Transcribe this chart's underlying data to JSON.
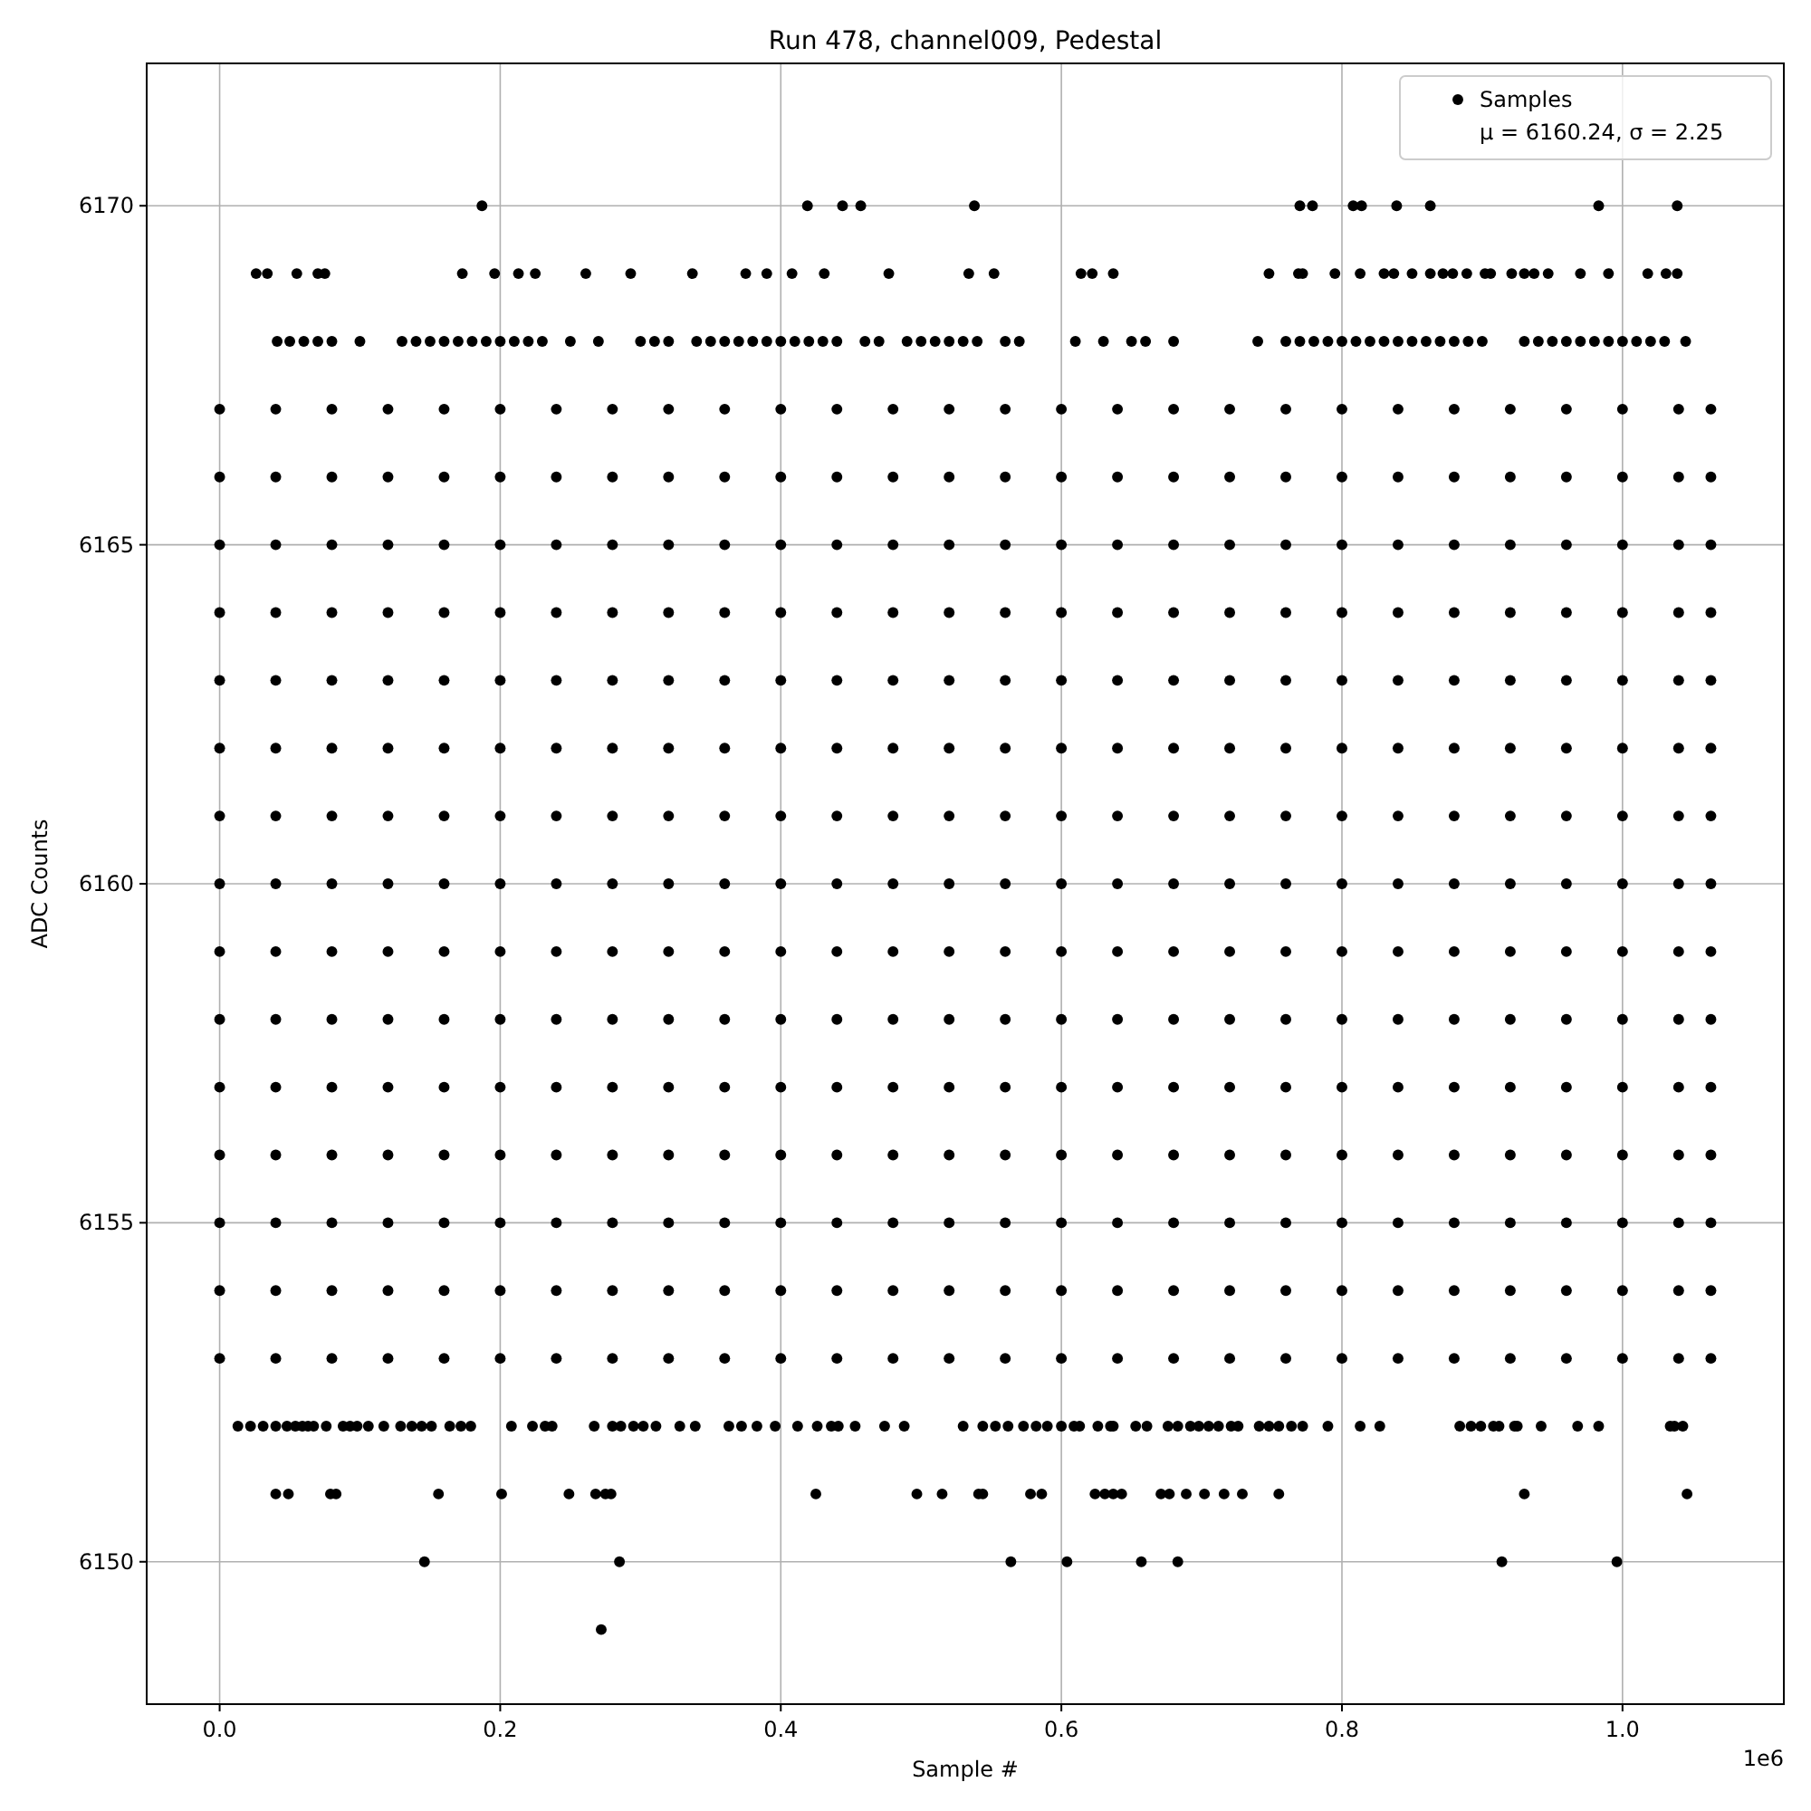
{
  "chart_data": {
    "type": "scatter",
    "title": "Run 478, channel009, Pedestal",
    "xlabel": "Sample #",
    "ylabel": "ADC Counts",
    "annotations": [
      "μ = 6160.24, σ = 2.25",
      "1e6"
    ],
    "xlim": [
      -0.052,
      1.115
    ],
    "xticks": [
      {
        "value": 0,
        "label": "0.0"
      },
      {
        "value": 0.2,
        "label": "0.2"
      },
      {
        "value": 0.4,
        "label": "0.4"
      },
      {
        "value": 0.6,
        "label": "0.6"
      },
      {
        "value": 0.8,
        "label": "0.8"
      },
      {
        "value": 1,
        "label": "1.0"
      }
    ],
    "ylim": [
      6147.9,
      6172.1
    ],
    "yticks": [
      6150,
      6155,
      6160,
      6165,
      6170
    ],
    "grid": true,
    "legend": "top right",
    "marker": "circle",
    "series": [
      {
        "name": "Samples",
        "color": "#000000",
        "x": [
          0.272,
          0.146,
          0.285,
          0.564,
          0.604,
          0.657,
          0.683,
          0.914,
          0.996,
          0.04,
          0.049,
          0.079,
          0.083,
          0.156,
          0.201,
          0.249,
          0.268,
          0.275,
          0.279,
          0.425,
          0.497,
          0.515,
          0.541,
          0.544,
          0.578,
          0.586,
          0.624,
          0.631,
          0.637,
          0.643,
          0.671,
          0.677,
          0.689,
          0.702,
          0.716,
          0.729,
          0.755,
          0.93,
          1.046,
          0.013,
          0.022,
          0.031,
          0.04,
          0.048,
          0.054,
          0.059,
          0.063,
          0.067,
          0.076,
          0.088,
          0.093,
          0.098,
          0.106,
          0.117,
          0.129,
          0.137,
          0.144,
          0.151,
          0.164,
          0.172,
          0.179,
          0.208,
          0.223,
          0.232,
          0.237,
          0.267,
          0.28,
          0.286,
          0.295,
          0.302,
          0.311,
          0.328,
          0.339,
          0.363,
          0.372,
          0.383,
          0.396,
          0.412,
          0.426,
          0.436,
          0.441,
          0.453,
          0.474,
          0.488,
          0.53,
          0.544,
          0.553,
          0.562,
          0.573,
          0.582,
          0.59,
          0.6,
          0.609,
          0.613,
          0.626,
          0.635,
          0.637,
          0.653,
          0.661,
          0.676,
          0.683,
          0.692,
          0.698,
          0.705,
          0.712,
          0.721,
          0.726,
          0.741,
          0.748,
          0.755,
          0.764,
          0.772,
          0.79,
          0.813,
          0.827,
          0.884,
          0.892,
          0.899,
          0.908,
          0.912,
          0.923,
          0.925,
          0.942,
          0.968,
          0.983,
          1.034,
          1.037,
          1.043,
          0,
          0.04,
          0.08,
          0.12,
          0.16,
          0.2,
          0.24,
          0.28,
          0.32,
          0.36,
          0.4,
          0.44,
          0.48,
          0.52,
          0.56,
          0.6,
          0.64,
          0.68,
          0.72,
          0.76,
          0.8,
          0.84,
          0.88,
          0.92,
          0.96,
          1,
          1.04,
          1.063,
          0,
          0.04,
          0.08,
          0.12,
          0.16,
          0.2,
          0.24,
          0.28,
          0.32,
          0.36,
          0.4,
          0.44,
          0.48,
          0.52,
          0.56,
          0.6,
          0.64,
          0.68,
          0.72,
          0.76,
          0.8,
          0.84,
          0.88,
          0.92,
          0.96,
          1,
          1.04,
          1.063,
          0,
          0.04,
          0.08,
          0.12,
          0.16,
          0.2,
          0.24,
          0.28,
          0.32,
          0.36,
          0.4,
          0.44,
          0.48,
          0.52,
          0.56,
          0.6,
          0.64,
          0.68,
          0.72,
          0.76,
          0.8,
          0.84,
          0.88,
          0.92,
          0.96,
          1,
          1.04,
          1.063,
          0,
          0.04,
          0.08,
          0.12,
          0.16,
          0.2,
          0.24,
          0.28,
          0.32,
          0.36,
          0.4,
          0.44,
          0.48,
          0.52,
          0.56,
          0.6,
          0.64,
          0.68,
          0.72,
          0.76,
          0.8,
          0.84,
          0.88,
          0.92,
          0.96,
          1,
          1.04,
          1.063,
          0,
          0.04,
          0.08,
          0.12,
          0.16,
          0.2,
          0.24,
          0.28,
          0.32,
          0.36,
          0.4,
          0.44,
          0.48,
          0.52,
          0.56,
          0.6,
          0.64,
          0.68,
          0.72,
          0.76,
          0.8,
          0.84,
          0.88,
          0.92,
          0.96,
          1,
          1.04,
          1.063,
          0,
          0.04,
          0.08,
          0.12,
          0.16,
          0.2,
          0.24,
          0.28,
          0.32,
          0.36,
          0.4,
          0.44,
          0.48,
          0.52,
          0.56,
          0.6,
          0.64,
          0.68,
          0.72,
          0.76,
          0.8,
          0.84,
          0.88,
          0.92,
          0.96,
          1,
          1.04,
          1.063,
          0,
          0.04,
          0.08,
          0.12,
          0.16,
          0.2,
          0.24,
          0.28,
          0.32,
          0.36,
          0.4,
          0.44,
          0.48,
          0.52,
          0.56,
          0.6,
          0.64,
          0.68,
          0.72,
          0.76,
          0.8,
          0.84,
          0.88,
          0.92,
          0.96,
          1,
          1.04,
          1.063,
          0,
          0.04,
          0.08,
          0.12,
          0.16,
          0.2,
          0.24,
          0.28,
          0.32,
          0.36,
          0.4,
          0.44,
          0.48,
          0.52,
          0.56,
          0.6,
          0.64,
          0.68,
          0.72,
          0.76,
          0.8,
          0.84,
          0.88,
          0.92,
          0.96,
          1,
          1.04,
          1.063,
          0,
          0.04,
          0.08,
          0.12,
          0.16,
          0.2,
          0.24,
          0.28,
          0.32,
          0.36,
          0.4,
          0.44,
          0.48,
          0.52,
          0.56,
          0.6,
          0.64,
          0.68,
          0.72,
          0.76,
          0.8,
          0.84,
          0.88,
          0.92,
          0.96,
          1,
          1.04,
          1.063,
          0,
          0.04,
          0.08,
          0.12,
          0.16,
          0.2,
          0.24,
          0.28,
          0.32,
          0.36,
          0.4,
          0.44,
          0.48,
          0.52,
          0.56,
          0.6,
          0.64,
          0.68,
          0.72,
          0.76,
          0.8,
          0.84,
          0.88,
          0.92,
          0.96,
          1,
          1.04,
          1.063,
          0,
          0.04,
          0.08,
          0.12,
          0.16,
          0.2,
          0.24,
          0.28,
          0.32,
          0.36,
          0.4,
          0.44,
          0.48,
          0.52,
          0.56,
          0.6,
          0.64,
          0.68,
          0.72,
          0.76,
          0.8,
          0.84,
          0.88,
          0.92,
          0.96,
          1,
          1.04,
          1.063,
          0,
          0.04,
          0.08,
          0.12,
          0.16,
          0.2,
          0.24,
          0.28,
          0.32,
          0.36,
          0.4,
          0.44,
          0.48,
          0.52,
          0.56,
          0.6,
          0.64,
          0.68,
          0.72,
          0.76,
          0.8,
          0.84,
          0.88,
          0.92,
          0.96,
          1,
          1.04,
          1.063,
          0,
          0.04,
          0.08,
          0.12,
          0.16,
          0.2,
          0.24,
          0.28,
          0.32,
          0.36,
          0.4,
          0.44,
          0.48,
          0.52,
          0.56,
          0.6,
          0.64,
          0.68,
          0.72,
          0.76,
          0.8,
          0.84,
          0.88,
          0.92,
          0.96,
          1,
          1.04,
          1.063,
          0,
          0.04,
          0.08,
          0.12,
          0.16,
          0.2,
          0.24,
          0.28,
          0.32,
          0.36,
          0.4,
          0.44,
          0.48,
          0.52,
          0.56,
          0.6,
          0.64,
          0.68,
          0.72,
          0.76,
          0.8,
          0.84,
          0.88,
          0.92,
          0.96,
          1,
          1.04,
          1.063,
          0,
          0.04,
          0.08,
          0.12,
          0.16,
          0.2,
          0.24,
          0.28,
          0.32,
          0.36,
          0.4,
          0.44,
          0.48,
          0.52,
          0.56,
          0.6,
          0.64,
          0.68,
          0.72,
          0.76,
          0.8,
          0.84,
          0.88,
          0.92,
          0.96,
          1,
          1.04,
          1.063,
          0.041,
          0.05,
          0.06,
          0.07,
          0.08,
          0.1,
          0.13,
          0.14,
          0.15,
          0.16,
          0.17,
          0.18,
          0.19,
          0.2,
          0.21,
          0.22,
          0.23,
          0.25,
          0.27,
          0.3,
          0.31,
          0.32,
          0.34,
          0.35,
          0.36,
          0.37,
          0.38,
          0.39,
          0.4,
          0.41,
          0.42,
          0.43,
          0.44,
          0.46,
          0.47,
          0.49,
          0.5,
          0.51,
          0.52,
          0.53,
          0.54,
          0.56,
          0.57,
          0.61,
          0.63,
          0.65,
          0.66,
          0.68,
          0.74,
          0.76,
          0.77,
          0.78,
          0.79,
          0.8,
          0.81,
          0.82,
          0.83,
          0.84,
          0.85,
          0.86,
          0.87,
          0.88,
          0.89,
          0.9,
          0.93,
          0.94,
          0.95,
          0.96,
          0.97,
          0.98,
          0.99,
          1.0,
          1.01,
          1.02,
          1.03,
          1.045,
          0.026,
          0.034,
          0.055,
          0.07,
          0.075,
          0.173,
          0.196,
          0.213,
          0.225,
          0.261,
          0.293,
          0.337,
          0.375,
          0.39,
          0.408,
          0.431,
          0.477,
          0.534,
          0.552,
          0.614,
          0.622,
          0.637,
          0.748,
          0.769,
          0.772,
          0.795,
          0.813,
          0.83,
          0.837,
          0.85,
          0.863,
          0.872,
          0.879,
          0.889,
          0.902,
          0.906,
          0.921,
          0.93,
          0.937,
          0.947,
          0.97,
          0.99,
          1.018,
          1.031,
          1.039,
          0.187,
          0.419,
          0.444,
          0.457,
          0.538,
          0.77,
          0.779,
          0.808,
          0.814,
          0.839,
          0.863,
          0.983,
          1.039
        ],
        "values": [
          6149,
          6150,
          6150,
          6150,
          6150,
          6150,
          6150,
          6150,
          6150,
          6151,
          6151,
          6151,
          6151,
          6151,
          6151,
          6151,
          6151,
          6151,
          6151,
          6151,
          6151,
          6151,
          6151,
          6151,
          6151,
          6151,
          6151,
          6151,
          6151,
          6151,
          6151,
          6151,
          6151,
          6151,
          6151,
          6151,
          6151,
          6151,
          6151,
          6152,
          6152,
          6152,
          6152,
          6152,
          6152,
          6152,
          6152,
          6152,
          6152,
          6152,
          6152,
          6152,
          6152,
          6152,
          6152,
          6152,
          6152,
          6152,
          6152,
          6152,
          6152,
          6152,
          6152,
          6152,
          6152,
          6152,
          6152,
          6152,
          6152,
          6152,
          6152,
          6152,
          6152,
          6152,
          6152,
          6152,
          6152,
          6152,
          6152,
          6152,
          6152,
          6152,
          6152,
          6152,
          6152,
          6152,
          6152,
          6152,
          6152,
          6152,
          6152,
          6152,
          6152,
          6152,
          6152,
          6152,
          6152,
          6152,
          6152,
          6152,
          6152,
          6152,
          6152,
          6152,
          6152,
          6152,
          6152,
          6152,
          6152,
          6152,
          6152,
          6152,
          6152,
          6152,
          6152,
          6152,
          6152,
          6152,
          6152,
          6152,
          6152,
          6152,
          6152,
          6152,
          6152,
          6152,
          6152,
          6152,
          6153,
          6153,
          6153,
          6153,
          6153,
          6153,
          6153,
          6153,
          6153,
          6153,
          6153,
          6153,
          6153,
          6153,
          6153,
          6153,
          6153,
          6153,
          6153,
          6153,
          6153,
          6153,
          6153,
          6153,
          6153,
          6153,
          6153,
          6153,
          6154,
          6154,
          6154,
          6154,
          6154,
          6154,
          6154,
          6154,
          6154,
          6154,
          6154,
          6154,
          6154,
          6154,
          6154,
          6154,
          6154,
          6154,
          6154,
          6154,
          6154,
          6154,
          6154,
          6154,
          6154,
          6154,
          6154,
          6154,
          6155,
          6155,
          6155,
          6155,
          6155,
          6155,
          6155,
          6155,
          6155,
          6155,
          6155,
          6155,
          6155,
          6155,
          6155,
          6155,
          6155,
          6155,
          6155,
          6155,
          6155,
          6155,
          6155,
          6155,
          6155,
          6155,
          6155,
          6155,
          6156,
          6156,
          6156,
          6156,
          6156,
          6156,
          6156,
          6156,
          6156,
          6156,
          6156,
          6156,
          6156,
          6156,
          6156,
          6156,
          6156,
          6156,
          6156,
          6156,
          6156,
          6156,
          6156,
          6156,
          6156,
          6156,
          6156,
          6156,
          6157,
          6157,
          6157,
          6157,
          6157,
          6157,
          6157,
          6157,
          6157,
          6157,
          6157,
          6157,
          6157,
          6157,
          6157,
          6157,
          6157,
          6157,
          6157,
          6157,
          6157,
          6157,
          6157,
          6157,
          6157,
          6157,
          6157,
          6157,
          6158,
          6158,
          6158,
          6158,
          6158,
          6158,
          6158,
          6158,
          6158,
          6158,
          6158,
          6158,
          6158,
          6158,
          6158,
          6158,
          6158,
          6158,
          6158,
          6158,
          6158,
          6158,
          6158,
          6158,
          6158,
          6158,
          6158,
          6158,
          6159,
          6159,
          6159,
          6159,
          6159,
          6159,
          6159,
          6159,
          6159,
          6159,
          6159,
          6159,
          6159,
          6159,
          6159,
          6159,
          6159,
          6159,
          6159,
          6159,
          6159,
          6159,
          6159,
          6159,
          6159,
          6159,
          6159,
          6159,
          6160,
          6160,
          6160,
          6160,
          6160,
          6160,
          6160,
          6160,
          6160,
          6160,
          6160,
          6160,
          6160,
          6160,
          6160,
          6160,
          6160,
          6160,
          6160,
          6160,
          6160,
          6160,
          6160,
          6160,
          6160,
          6160,
          6160,
          6160,
          6161,
          6161,
          6161,
          6161,
          6161,
          6161,
          6161,
          6161,
          6161,
          6161,
          6161,
          6161,
          6161,
          6161,
          6161,
          6161,
          6161,
          6161,
          6161,
          6161,
          6161,
          6161,
          6161,
          6161,
          6161,
          6161,
          6161,
          6161,
          6162,
          6162,
          6162,
          6162,
          6162,
          6162,
          6162,
          6162,
          6162,
          6162,
          6162,
          6162,
          6162,
          6162,
          6162,
          6162,
          6162,
          6162,
          6162,
          6162,
          6162,
          6162,
          6162,
          6162,
          6162,
          6162,
          6162,
          6162,
          6163,
          6163,
          6163,
          6163,
          6163,
          6163,
          6163,
          6163,
          6163,
          6163,
          6163,
          6163,
          6163,
          6163,
          6163,
          6163,
          6163,
          6163,
          6163,
          6163,
          6163,
          6163,
          6163,
          6163,
          6163,
          6163,
          6163,
          6163,
          6164,
          6164,
          6164,
          6164,
          6164,
          6164,
          6164,
          6164,
          6164,
          6164,
          6164,
          6164,
          6164,
          6164,
          6164,
          6164,
          6164,
          6164,
          6164,
          6164,
          6164,
          6164,
          6164,
          6164,
          6164,
          6164,
          6164,
          6164,
          6165,
          6165,
          6165,
          6165,
          6165,
          6165,
          6165,
          6165,
          6165,
          6165,
          6165,
          6165,
          6165,
          6165,
          6165,
          6165,
          6165,
          6165,
          6165,
          6165,
          6165,
          6165,
          6165,
          6165,
          6165,
          6165,
          6165,
          6165,
          6166,
          6166,
          6166,
          6166,
          6166,
          6166,
          6166,
          6166,
          6166,
          6166,
          6166,
          6166,
          6166,
          6166,
          6166,
          6166,
          6166,
          6166,
          6166,
          6166,
          6166,
          6166,
          6166,
          6166,
          6166,
          6166,
          6166,
          6166,
          6167,
          6167,
          6167,
          6167,
          6167,
          6167,
          6167,
          6167,
          6167,
          6167,
          6167,
          6167,
          6167,
          6167,
          6167,
          6167,
          6167,
          6167,
          6167,
          6167,
          6167,
          6167,
          6167,
          6167,
          6167,
          6167,
          6167,
          6167,
          6168,
          6168,
          6168,
          6168,
          6168,
          6168,
          6168,
          6168,
          6168,
          6168,
          6168,
          6168,
          6168,
          6168,
          6168,
          6168,
          6168,
          6168,
          6168,
          6168,
          6168,
          6168,
          6168,
          6168,
          6168,
          6168,
          6168,
          6168,
          6168,
          6168,
          6168,
          6168,
          6168,
          6168,
          6168,
          6168,
          6168,
          6168,
          6168,
          6168,
          6168,
          6168,
          6168,
          6168,
          6168,
          6168,
          6168,
          6168,
          6168,
          6168,
          6168,
          6168,
          6168,
          6168,
          6168,
          6168,
          6168,
          6168,
          6168,
          6168,
          6168,
          6168,
          6168,
          6168,
          6168,
          6168,
          6168,
          6168,
          6168,
          6168,
          6168,
          6168,
          6168,
          6168,
          6168,
          6168,
          6169,
          6169,
          6169,
          6169,
          6169,
          6169,
          6169,
          6169,
          6169,
          6169,
          6169,
          6169,
          6169,
          6169,
          6169,
          6169,
          6169,
          6169,
          6169,
          6169,
          6169,
          6169,
          6169,
          6169,
          6169,
          6169,
          6169,
          6169,
          6169,
          6169,
          6169,
          6169,
          6169,
          6169,
          6169,
          6169,
          6169,
          6169,
          6169,
          6169,
          6169,
          6169,
          6169,
          6169,
          6169,
          6170,
          6170,
          6170,
          6170,
          6170,
          6170,
          6170,
          6170,
          6170,
          6170,
          6170,
          6170,
          6170
        ]
      }
    ]
  }
}
